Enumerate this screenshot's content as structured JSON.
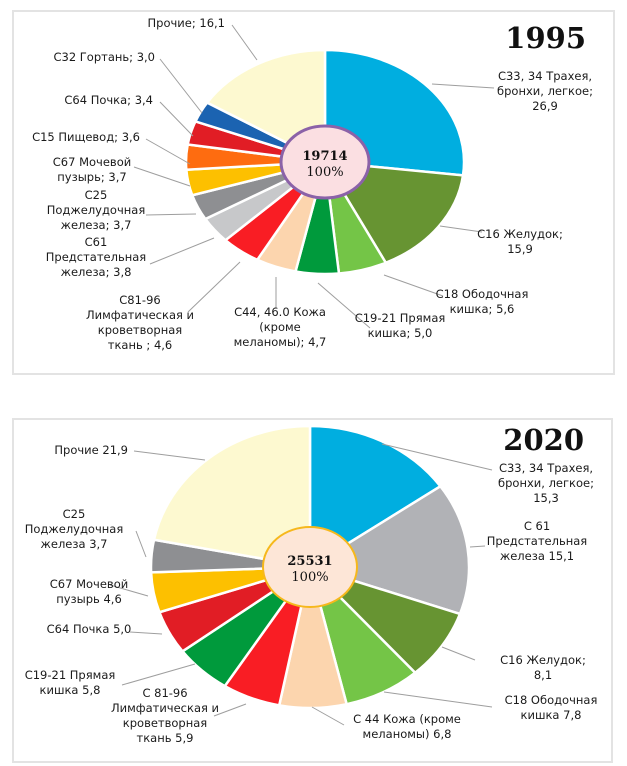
{
  "chart_data": [
    {
      "type": "pie",
      "title": "1995",
      "center_total": "19714",
      "center_percent": "100%",
      "center_fill": "#fbdfe2",
      "center_stroke": "#8b62a8",
      "slices": [
        {
          "name": "trachea",
          "label": [
            "С33, 34 Трахея,",
            "бронхи, легкое;",
            "26,9"
          ],
          "value": 26.9,
          "color": "#00aee0"
        },
        {
          "name": "stomach",
          "label": [
            "С16 Желудок;",
            "15,9"
          ],
          "value": 15.9,
          "color": "#679432"
        },
        {
          "name": "colon",
          "label": [
            "С18 Ободочная",
            "кишка; 5,6"
          ],
          "value": 5.6,
          "color": "#74c547"
        },
        {
          "name": "rectum",
          "label": [
            "С19-21 Прямая",
            "кишка; 5,0"
          ],
          "value": 5.0,
          "color": "#009a3c"
        },
        {
          "name": "skin",
          "label": [
            "С44, 46.0 Кожа",
            "(кроме",
            "меланомы); 4,7"
          ],
          "value": 4.7,
          "color": "#fcd5ae"
        },
        {
          "name": "lymph",
          "label": [
            "С81-96",
            "Лимфатическая и",
            "кроветворная",
            "ткань ; 4,6"
          ],
          "value": 4.6,
          "color": "#f91d24"
        },
        {
          "name": "prostate",
          "label": [
            "С61",
            "Предстательная",
            "железа; 3,8"
          ],
          "value": 3.8,
          "color": "#c7c8ca"
        },
        {
          "name": "pancreas",
          "label": [
            "С25",
            "Поджелудочная",
            "железа; 3,7"
          ],
          "value": 3.7,
          "color": "#8e8f92"
        },
        {
          "name": "bladder",
          "label": [
            "С67 Мочевой",
            "пузырь; 3,7"
          ],
          "value": 3.7,
          "color": "#fdc000"
        },
        {
          "name": "esophagus",
          "label": [
            "С15 Пищевод; 3,6"
          ],
          "value": 3.6,
          "color": "#fe6c10"
        },
        {
          "name": "kidney",
          "label": [
            "С64 Почка; 3,4"
          ],
          "value": 3.4,
          "color": "#e11d25"
        },
        {
          "name": "larynx",
          "label": [
            "С32 Гортань; 3,0"
          ],
          "value": 3.0,
          "color": "#1b63b1"
        },
        {
          "name": "other",
          "label": [
            "Прочие; 16,1"
          ],
          "value": 16.1,
          "color": "#fdf9d0"
        }
      ]
    },
    {
      "type": "pie",
      "title": "2020",
      "center_total": "25531",
      "center_percent": "100%",
      "center_fill": "#fde6d7",
      "center_stroke": "#f6b81c",
      "slices": [
        {
          "name": "trachea",
          "label": [
            "С33, 34 Трахея,",
            "бронхи, легкое;",
            "15,3"
          ],
          "value": 15.3,
          "color": "#00aee0"
        },
        {
          "name": "prostate",
          "label": [
            "С 61",
            "Предстательная",
            "железа  15,1"
          ],
          "value": 15.1,
          "color": "#b1b2b6"
        },
        {
          "name": "stomach",
          "label": [
            "С16 Желудок;",
            "8,1"
          ],
          "value": 8.1,
          "color": "#679432"
        },
        {
          "name": "colon",
          "label": [
            "С18 Ободочная",
            "кишка  7,8"
          ],
          "value": 7.8,
          "color": "#74c547"
        },
        {
          "name": "skin",
          "label": [
            "С 44 Кожа (кроме",
            "меланомы)  6,8"
          ],
          "value": 6.8,
          "color": "#fcd5ae"
        },
        {
          "name": "lymph",
          "label": [
            "С 81-96",
            "Лимфатическая и",
            "кроветворная",
            "ткань  5,9"
          ],
          "value": 5.9,
          "color": "#f91d24"
        },
        {
          "name": "rectum",
          "label": [
            "С19-21 Прямая",
            "кишка  5,8"
          ],
          "value": 5.8,
          "color": "#009a3c"
        },
        {
          "name": "kidney",
          "label": [
            "С64 Почка  5,0"
          ],
          "value": 5.0,
          "color": "#e11d25"
        },
        {
          "name": "bladder",
          "label": [
            "С67 Мочевой",
            "пузырь  4,6"
          ],
          "value": 4.6,
          "color": "#fdc000"
        },
        {
          "name": "pancreas",
          "label": [
            "С25",
            "Поджелудочная",
            "железа  3,7"
          ],
          "value": 3.7,
          "color": "#8e8f92"
        },
        {
          "name": "other",
          "label": [
            "Прочие 21,9"
          ],
          "value": 21.9,
          "color": "#fdf9d0"
        }
      ]
    }
  ]
}
